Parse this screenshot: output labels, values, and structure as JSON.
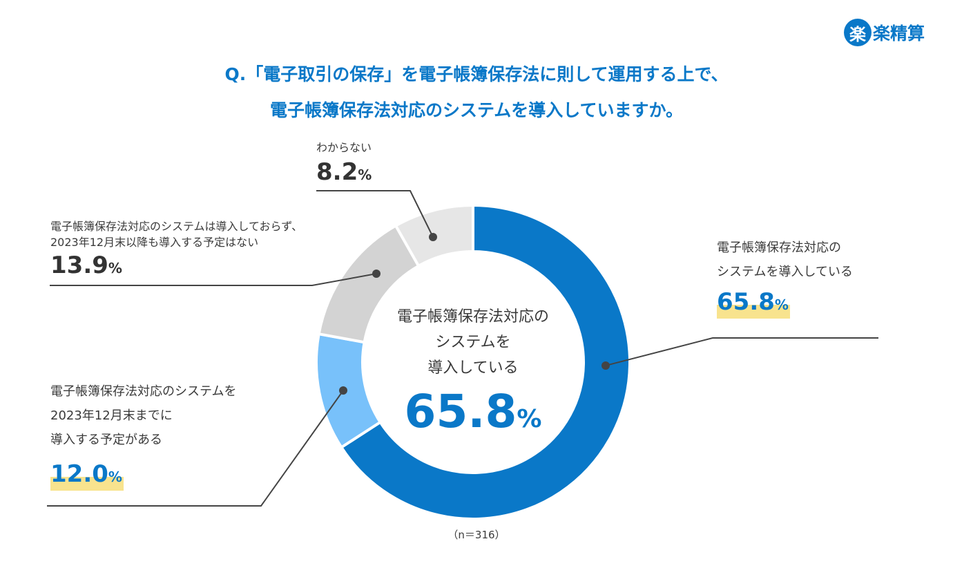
{
  "logo": {
    "badge": "楽",
    "text": "楽精算"
  },
  "title": {
    "line1": "Q.「電子取引の保存」を電子帳簿保存法に則して運用する上で、",
    "line2": "電子帳簿保存法対応のシステムを導入していますか。"
  },
  "center": {
    "line1": "電子帳簿保存法対応の",
    "line2": "システムを",
    "line3": "導入している",
    "value": "65.8",
    "unit": "%"
  },
  "labels": {
    "implemented": {
      "line1": "電子帳簿保存法対応の",
      "line2": "システムを導入している",
      "value": "65.8",
      "unit": "%"
    },
    "planned": {
      "line1": "電子帳簿保存法対応のシステムを",
      "line2": "2023年12月末までに",
      "line3": "導入する予定がある",
      "value": "12.0",
      "unit": "%"
    },
    "not_planned": {
      "line1": "電子帳簿保存法対応のシステムは導入しておらず、",
      "line2": "2023年12月末以降も導入する予定はない",
      "value": "13.9",
      "unit": "%"
    },
    "unknown": {
      "line1": "わからない",
      "value": "8.2",
      "unit": "%"
    }
  },
  "sample": "（n＝316）",
  "colors": {
    "primary": "#0a78c8",
    "light_blue": "#78c1fa",
    "gray": "#d3d3d3",
    "light_gray": "#e6e6e6",
    "highlight": "#f8e38e"
  },
  "chart_data": {
    "type": "pie",
    "variant": "donut",
    "title": "Q.「電子取引の保存」を電子帳簿保存法に則して運用する上で、電子帳簿保存法対応のシステムを導入していますか。",
    "categories": [
      "電子帳簿保存法対応のシステムを導入している",
      "電子帳簿保存法対応のシステムを2023年12月末までに導入する予定がある",
      "電子帳簿保存法対応のシステムは導入しておらず、2023年12月末以降も導入する予定はない",
      "わからない"
    ],
    "values": [
      65.8,
      12.0,
      13.9,
      8.2
    ],
    "unit": "%",
    "colors": [
      "#0a78c8",
      "#78c1fa",
      "#d3d3d3",
      "#e6e6e6"
    ],
    "annotations": [
      "(n=316)"
    ],
    "center_label": "電子帳簿保存法対応のシステムを導入している 65.8%"
  }
}
